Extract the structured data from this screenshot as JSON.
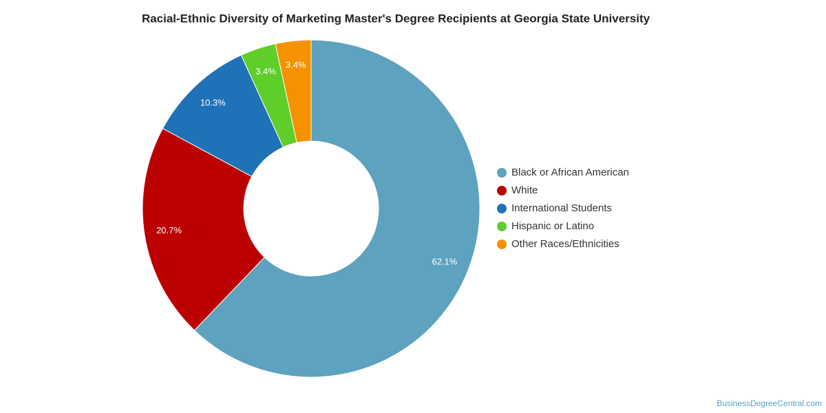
{
  "chart_data": {
    "type": "donut",
    "title": "Racial-Ethnic Diversity of Marketing Master's Degree Recipients at Georgia State University",
    "categories": [
      "Black or African American",
      "White",
      "International Students",
      "Hispanic or Latino",
      "Other Races/Ethnicities"
    ],
    "values": [
      62.1,
      20.7,
      10.3,
      3.4,
      3.4
    ],
    "value_labels": [
      "62.1%",
      "20.7%",
      "10.3%",
      "3.4%",
      "3.4%"
    ],
    "colors": [
      "#5da2be",
      "#bb0000",
      "#1f72b8",
      "#5fcd2a",
      "#f59200"
    ],
    "legend": "right",
    "watermark": "BusinessDegreeCentral.com"
  }
}
